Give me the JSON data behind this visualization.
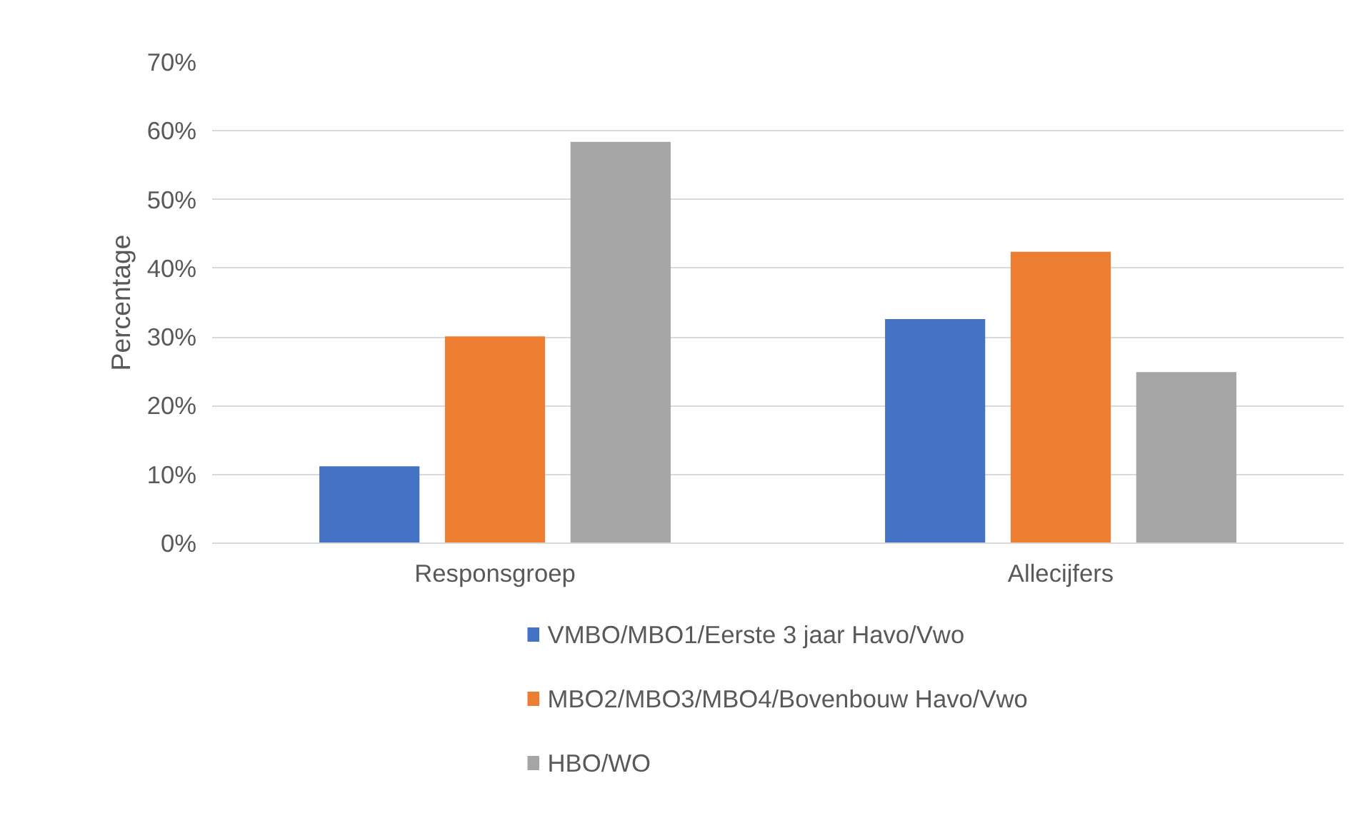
{
  "chart_data": {
    "type": "bar",
    "ylabel": "Percentage",
    "categories": [
      "Responsgroep",
      "Allecijfers"
    ],
    "series": [
      {
        "name": "VMBO/MBO1/Eerste 3 jaar Havo/Vwo",
        "color": "#4472c4",
        "values": [
          11.2,
          32.6
        ]
      },
      {
        "name": "MBO2/MBO3/MBO4/Bovenbouw Havo/Vwo",
        "color": "#ed7d31",
        "values": [
          30.1,
          42.4
        ]
      },
      {
        "name": "HBO/WO",
        "color": "#a5a5a5",
        "values": [
          58.4,
          24.9
        ]
      }
    ],
    "ylim": [
      0,
      70
    ],
    "yticks": [
      {
        "value": 0,
        "label": "0%"
      },
      {
        "value": 10,
        "label": "10%"
      },
      {
        "value": 20,
        "label": "20%"
      },
      {
        "value": 30,
        "label": "30%"
      },
      {
        "value": 40,
        "label": "40%"
      },
      {
        "value": 50,
        "label": "50%"
      },
      {
        "value": 60,
        "label": "60%"
      },
      {
        "value": 70,
        "label": "70%"
      }
    ],
    "grid": "y",
    "legend": "bottom"
  }
}
